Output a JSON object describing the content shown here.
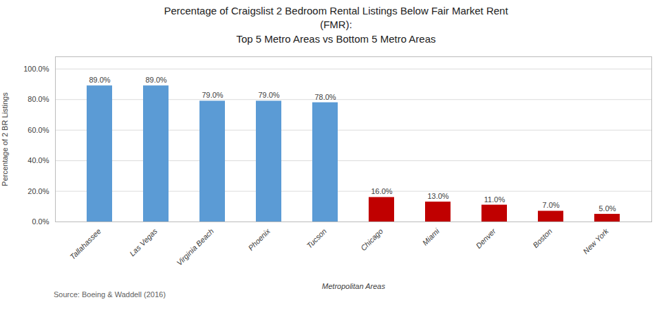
{
  "chart_data": {
    "type": "bar",
    "title": "Percentage of Craigslist 2 Bedroom Rental Listings Below Fair Market Rent\n(FMR):\nTop 5 Metro Areas vs Bottom 5 Metro Areas",
    "xlabel": "Metropolitan Areas",
    "ylabel": "Percentage of 2 BR Listings",
    "caption": "Source: Boeing & Waddell (2016)",
    "categories": [
      "Tallahassee",
      "Las Vegas",
      "Virginia Beach",
      "Phoenix",
      "Tucson",
      "Chicago",
      "Miami",
      "Denver",
      "Boston",
      "New York"
    ],
    "values": [
      0.89,
      0.89,
      0.79,
      0.79,
      0.78,
      0.16,
      0.13,
      0.11,
      0.07,
      0.05
    ],
    "value_labels": [
      "89.0%",
      "89.0%",
      "79.0%",
      "79.0%",
      "78.0%",
      "16.0%",
      "13.0%",
      "11.0%",
      "7.0%",
      "5.0%"
    ],
    "colors": [
      "#5B9BD5",
      "#5B9BD5",
      "#5B9BD5",
      "#5B9BD5",
      "#5B9BD5",
      "#C00000",
      "#C00000",
      "#C00000",
      "#C00000",
      "#C00000"
    ],
    "ylim": [
      0,
      1.08
    ],
    "yticks": [
      {
        "value": 0.0,
        "label": "0.0%"
      },
      {
        "value": 0.2,
        "label": "20.0%"
      },
      {
        "value": 0.4,
        "label": "40.0%"
      },
      {
        "value": 0.6,
        "label": "60.0%"
      },
      {
        "value": 0.8,
        "label": "80.0%"
      },
      {
        "value": 1.0,
        "label": "100.0%"
      }
    ],
    "grid": true,
    "data_labels": true
  }
}
